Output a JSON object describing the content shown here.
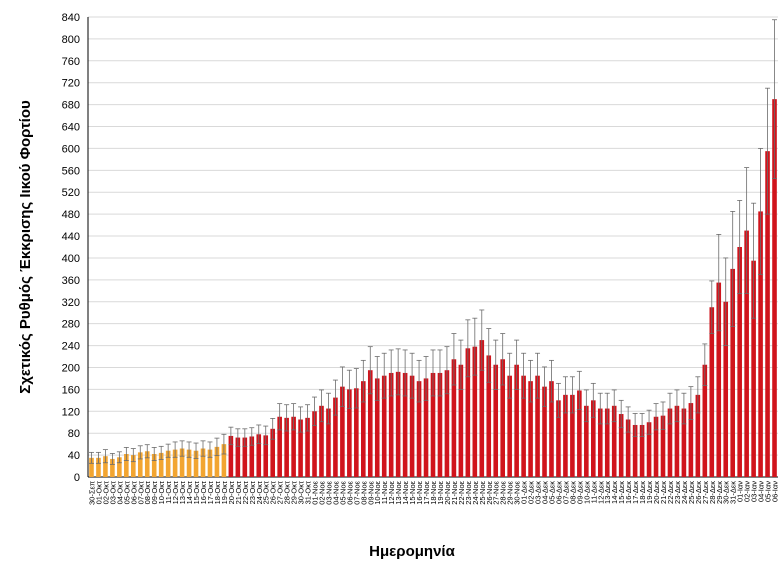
{
  "chart_data": {
    "type": "bar",
    "ylabel": "Σχετικός Ρυθμός Έκκρισης Ιικού Φορτίου",
    "xlabel": "Ημερομηνία",
    "categories": [
      "30-Σεπ",
      "01-Οκτ",
      "02-Οκτ",
      "03-Οκτ",
      "04-Οκτ",
      "05-Οκτ",
      "06-Οκτ",
      "07-Οκτ",
      "08-Οκτ",
      "09-Οκτ",
      "10-Οκτ",
      "11-Οκτ",
      "12-Οκτ",
      "13-Οκτ",
      "14-Οκτ",
      "15-Οκτ",
      "16-Οκτ",
      "17-Οκτ",
      "18-Οκτ",
      "19-Οκτ",
      "20-Οκτ",
      "21-Οκτ",
      "22-Οκτ",
      "23-Οκτ",
      "24-Οκτ",
      "25-Οκτ",
      "26-Οκτ",
      "27-Οκτ",
      "28-Οκτ",
      "29-Οκτ",
      "30-Οκτ",
      "31-Οκτ",
      "01-Νοε",
      "02-Νοε",
      "03-Νοε",
      "04-Νοε",
      "05-Νοε",
      "06-Νοε",
      "07-Νοε",
      "08-Νοε",
      "09-Νοε",
      "10-Νοε",
      "11-Νοε",
      "12-Νοε",
      "13-Νοε",
      "14-Νοε",
      "15-Νοε",
      "16-Νοε",
      "17-Νοε",
      "18-Νοε",
      "19-Νοε",
      "20-Νοε",
      "21-Νοε",
      "22-Νοε",
      "23-Νοε",
      "24-Νοε",
      "25-Νοε",
      "26-Νοε",
      "27-Νοε",
      "28-Νοε",
      "29-Νοε",
      "30-Νοε",
      "01-Δεκ",
      "02-Δεκ",
      "03-Δεκ",
      "04-Δεκ",
      "05-Δεκ",
      "06-Δεκ",
      "07-Δεκ",
      "08-Δεκ",
      "09-Δεκ",
      "10-Δεκ",
      "11-Δεκ",
      "12-Δεκ",
      "13-Δεκ",
      "14-Δεκ",
      "15-Δεκ",
      "16-Δεκ",
      "17-Δεκ",
      "18-Δεκ",
      "19-Δεκ",
      "20-Δεκ",
      "21-Δεκ",
      "22-Δεκ",
      "23-Δεκ",
      "24-Δεκ",
      "25-Δεκ",
      "26-Δεκ",
      "27-Δεκ",
      "28-Δεκ",
      "29-Δεκ",
      "30-Δεκ",
      "31-Δεκ",
      "01-Ιαν",
      "02-Ιαν",
      "03-Ιαν",
      "04-Ιαν",
      "05-Ιαν",
      "06-Ιαν"
    ],
    "values": [
      35,
      35,
      38,
      33,
      36,
      42,
      40,
      45,
      47,
      42,
      44,
      48,
      50,
      52,
      50,
      48,
      52,
      50,
      55,
      60,
      75,
      72,
      72,
      74,
      78,
      76,
      88,
      110,
      108,
      110,
      105,
      108,
      120,
      130,
      125,
      145,
      165,
      160,
      162,
      175,
      195,
      180,
      185,
      190,
      192,
      190,
      185,
      175,
      180,
      190,
      190,
      195,
      215,
      205,
      235,
      238,
      250,
      222,
      205,
      215,
      185,
      205,
      185,
      175,
      185,
      165,
      175,
      140,
      150,
      150,
      158,
      130,
      140,
      125,
      125,
      130,
      115,
      105,
      95,
      95,
      100,
      110,
      112,
      125,
      130,
      125,
      135,
      150,
      205,
      310,
      355,
      320,
      380,
      420,
      450,
      395,
      485,
      595,
      690
    ],
    "errors": [
      10,
      10,
      12,
      10,
      10,
      12,
      12,
      12,
      12,
      12,
      12,
      12,
      14,
      14,
      14,
      14,
      14,
      14,
      16,
      18,
      16,
      16,
      16,
      16,
      17,
      17,
      19,
      24,
      24,
      24,
      23,
      24,
      26,
      29,
      28,
      32,
      36,
      35,
      36,
      38,
      43,
      40,
      41,
      42,
      42,
      42,
      41,
      38,
      40,
      42,
      42,
      43,
      47,
      45,
      52,
      52,
      55,
      49,
      45,
      47,
      41,
      45,
      41,
      38,
      41,
      36,
      38,
      31,
      33,
      33,
      35,
      29,
      31,
      28,
      28,
      29,
      25,
      23,
      21,
      21,
      22,
      24,
      25,
      28,
      29,
      28,
      30,
      33,
      38,
      48,
      88,
      80,
      105,
      85,
      115,
      105,
      115,
      115,
      145
    ],
    "colors": [
      "#f2a531",
      "#f2a531",
      "#f2a531",
      "#f2a531",
      "#f2a531",
      "#f2a531",
      "#f2a531",
      "#f2a531",
      "#f2a531",
      "#f2a531",
      "#f2a531",
      "#f2a531",
      "#f2a531",
      "#f2a531",
      "#f2a531",
      "#f2a531",
      "#f2a531",
      "#f2a531",
      "#f2a531",
      "#f2a531",
      "#d0141c",
      "#d0141c",
      "#d0141c",
      "#d0141c",
      "#d0141c",
      "#d0141c",
      "#d0141c",
      "#d0141c",
      "#d0141c",
      "#d0141c",
      "#d0141c",
      "#d0141c",
      "#d0141c",
      "#d0141c",
      "#d0141c",
      "#d0141c",
      "#d0141c",
      "#d0141c",
      "#d0141c",
      "#d0141c",
      "#d0141c",
      "#d0141c",
      "#d0141c",
      "#d0141c",
      "#d0141c",
      "#d0141c",
      "#d0141c",
      "#d0141c",
      "#d0141c",
      "#d0141c",
      "#d0141c",
      "#d0141c",
      "#d0141c",
      "#d0141c",
      "#d0141c",
      "#d0141c",
      "#d0141c",
      "#d0141c",
      "#d0141c",
      "#d0141c",
      "#d0141c",
      "#d0141c",
      "#d0141c",
      "#d0141c",
      "#d0141c",
      "#d0141c",
      "#d0141c",
      "#d0141c",
      "#d0141c",
      "#d0141c",
      "#d0141c",
      "#d0141c",
      "#d0141c",
      "#d0141c",
      "#d0141c",
      "#d0141c",
      "#d0141c",
      "#d0141c",
      "#d0141c",
      "#d0141c",
      "#d0141c",
      "#d0141c",
      "#d0141c",
      "#d0141c",
      "#d0141c",
      "#d0141c",
      "#d0141c",
      "#d0141c",
      "#d0141c",
      "#d0141c",
      "#d0141c",
      "#d0141c",
      "#d0141c",
      "#d0141c",
      "#d0141c",
      "#d0141c",
      "#d0141c",
      "#d0141c",
      "#d0141c"
    ],
    "error_color": "#6b6b6b",
    "ylim": [
      0,
      840
    ],
    "yticks": [
      0,
      40,
      80,
      120,
      160,
      200,
      240,
      280,
      320,
      360,
      400,
      440,
      480,
      520,
      560,
      600,
      640,
      680,
      720,
      760,
      800,
      840
    ],
    "grid": true
  }
}
